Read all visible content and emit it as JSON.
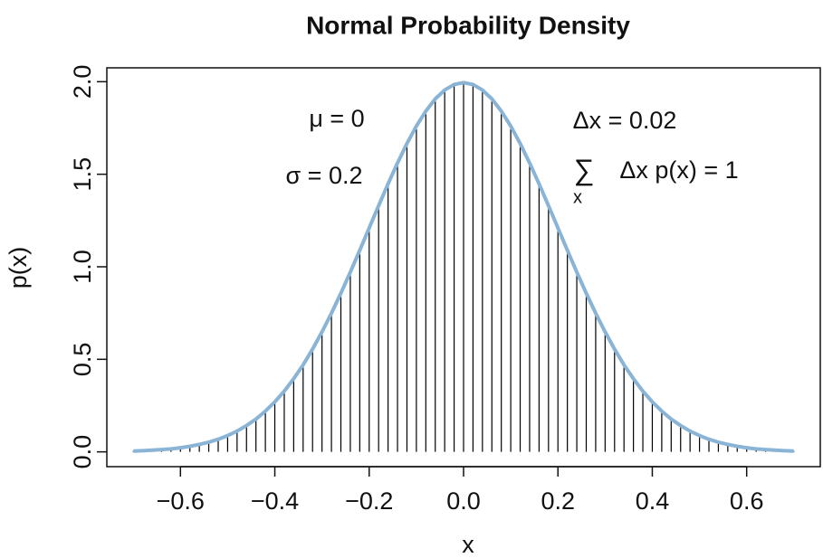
{
  "chart_data": {
    "type": "spikes",
    "title": "Normal Probability Density",
    "xlabel": "x",
    "ylabel": "p(x)",
    "annotations": [
      "μ = 0",
      "σ = 0.2",
      "Δx = 0.02",
      "∑",
      "x",
      "Δx p(x) = 1"
    ],
    "x": [
      -0.7,
      -0.68,
      -0.66,
      -0.64,
      -0.62,
      -0.6,
      -0.58,
      -0.56,
      -0.54,
      -0.52,
      -0.5,
      -0.48,
      -0.46,
      -0.44,
      -0.42,
      -0.4,
      -0.38,
      -0.36,
      -0.34,
      -0.32,
      -0.3,
      -0.28,
      -0.26,
      -0.24,
      -0.22,
      -0.2,
      -0.18,
      -0.16,
      -0.14,
      -0.12,
      -0.1,
      -0.08,
      -0.06,
      -0.04,
      -0.02,
      0,
      0.02,
      0.04,
      0.06,
      0.08,
      0.1,
      0.12,
      0.14,
      0.16,
      0.18,
      0.2,
      0.22,
      0.24,
      0.26,
      0.28,
      0.3,
      0.32,
      0.34,
      0.36,
      0.38,
      0.4,
      0.42,
      0.44,
      0.46,
      0.48,
      0.5,
      0.52,
      0.54,
      0.56,
      0.58,
      0.6,
      0.62,
      0.64,
      0.66,
      0.68,
      0.7
    ],
    "values": [
      0.004,
      0.006,
      0.009,
      0.012,
      0.016,
      0.022,
      0.03,
      0.04,
      0.052,
      0.068,
      0.088,
      0.112,
      0.142,
      0.177,
      0.22,
      0.27,
      0.328,
      0.395,
      0.47,
      0.555,
      0.648,
      0.749,
      0.857,
      0.971,
      1.089,
      1.21,
      1.33,
      1.448,
      1.561,
      1.666,
      1.76,
      1.841,
      1.907,
      1.955,
      1.985,
      1.995,
      1.985,
      1.955,
      1.907,
      1.841,
      1.76,
      1.666,
      1.561,
      1.448,
      1.33,
      1.21,
      1.089,
      0.971,
      0.857,
      0.749,
      0.648,
      0.555,
      0.47,
      0.395,
      0.328,
      0.27,
      0.22,
      0.177,
      0.142,
      0.112,
      0.088,
      0.068,
      0.052,
      0.04,
      0.03,
      0.022,
      0.016,
      0.012,
      0.009,
      0.006,
      0.004
    ],
    "color": "#8ab4d6",
    "spike_color": "#000000",
    "xlim": [
      -0.756,
      0.756
    ],
    "ylim": [
      -0.08,
      2.075
    ],
    "xticks": [
      {
        "value": -0.6,
        "label": "−0.6"
      },
      {
        "value": -0.4,
        "label": "−0.4"
      },
      {
        "value": -0.2,
        "label": "−0.2"
      },
      {
        "value": 0,
        "label": "0.0"
      },
      0.2,
      0.4,
      0.6
    ],
    "yticks": [
      {
        "value": 0,
        "label": "0.0"
      },
      0.5,
      {
        "value": 1,
        "label": "1.0"
      },
      1.5,
      {
        "value": 2,
        "label": "2.0"
      }
    ],
    "grid": false
  }
}
